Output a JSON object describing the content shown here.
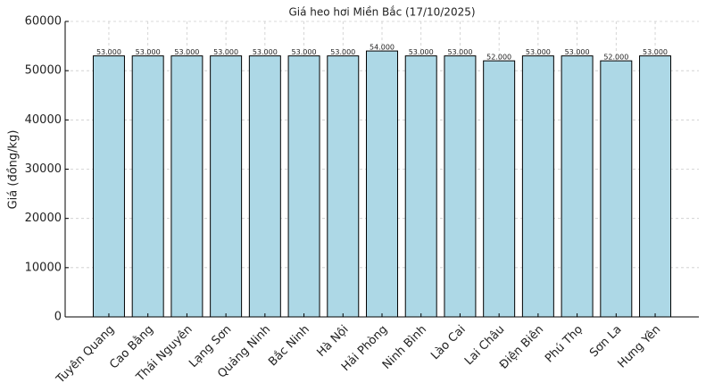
{
  "chart_data": {
    "type": "bar",
    "title": "Giá heo hơi Miền Bắc (17/10/2025)",
    "y_label": "Giá (đồng/kg)",
    "categories": [
      "Tuyên Quang",
      "Cao Bằng",
      "Thái Nguyên",
      "Lạng Sơn",
      "Quảng Ninh",
      "Bắc Ninh",
      "Hà Nội",
      "Hải Phòng",
      "Ninh Bình",
      "Lào Cai",
      "Lai Châu",
      "Điện Biên",
      "Phú Thọ",
      "Sơn La",
      "Hưng Yên"
    ],
    "values": [
      53000,
      53000,
      53000,
      53000,
      53000,
      53000,
      53000,
      54000,
      53000,
      53000,
      52000,
      53000,
      53000,
      52000,
      53000
    ],
    "value_labels": [
      "53.000",
      "53.000",
      "53.000",
      "53.000",
      "53.000",
      "53.000",
      "53.000",
      "54.000",
      "53.000",
      "53.000",
      "52.000",
      "53.000",
      "53.000",
      "52.000",
      "53.000"
    ],
    "color": "#add8e6",
    "ylim": [
      0,
      60000
    ],
    "yticks": [
      0,
      10000,
      20000,
      30000,
      40000,
      50000,
      60000
    ],
    "grid": true
  }
}
